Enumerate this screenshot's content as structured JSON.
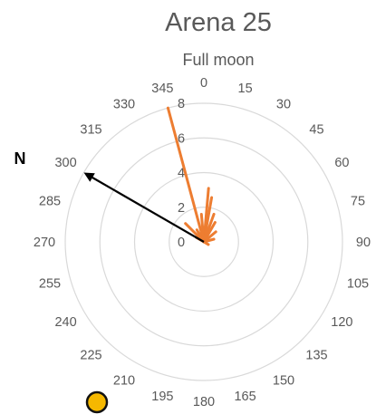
{
  "chart_data": {
    "type": "radar",
    "title": "Arena 25",
    "subtitle": "Full moon",
    "angle_ticks": [
      "0",
      "15",
      "30",
      "45",
      "60",
      "75",
      "90",
      "105",
      "120",
      "135",
      "150",
      "165",
      "180",
      "195",
      "210",
      "225",
      "240",
      "255",
      "270",
      "285",
      "300",
      "315",
      "330",
      "345"
    ],
    "radial_ticks": [
      "0",
      "2",
      "4",
      "6",
      "8"
    ],
    "rlim": [
      0,
      8
    ],
    "grid": true,
    "orientation_label": "N",
    "orientation_angle_deg": 300,
    "series": [
      {
        "color": "#ed7d31",
        "vectors": [
          {
            "angle": 345,
            "r": 8.0
          },
          {
            "angle": 5,
            "r": 3.1
          },
          {
            "angle": 10,
            "r": 2.6
          },
          {
            "angle": 20,
            "r": 1.7
          },
          {
            "angle": 30,
            "r": 1.3
          },
          {
            "angle": 50,
            "r": 0.9
          },
          {
            "angle": 75,
            "r": 0.6
          },
          {
            "angle": 120,
            "r": 0.3
          },
          {
            "angle": 300,
            "r": 0.5
          },
          {
            "angle": 315,
            "r": 1.5
          },
          {
            "angle": 330,
            "r": 0.8
          },
          {
            "angle": 355,
            "r": 1.6
          }
        ]
      }
    ],
    "orientation_arrow": {
      "angle": 300,
      "r": 8.0,
      "color": "#000000"
    },
    "sun_marker": {
      "color": "#f5b800",
      "stroke": "#111111"
    }
  }
}
